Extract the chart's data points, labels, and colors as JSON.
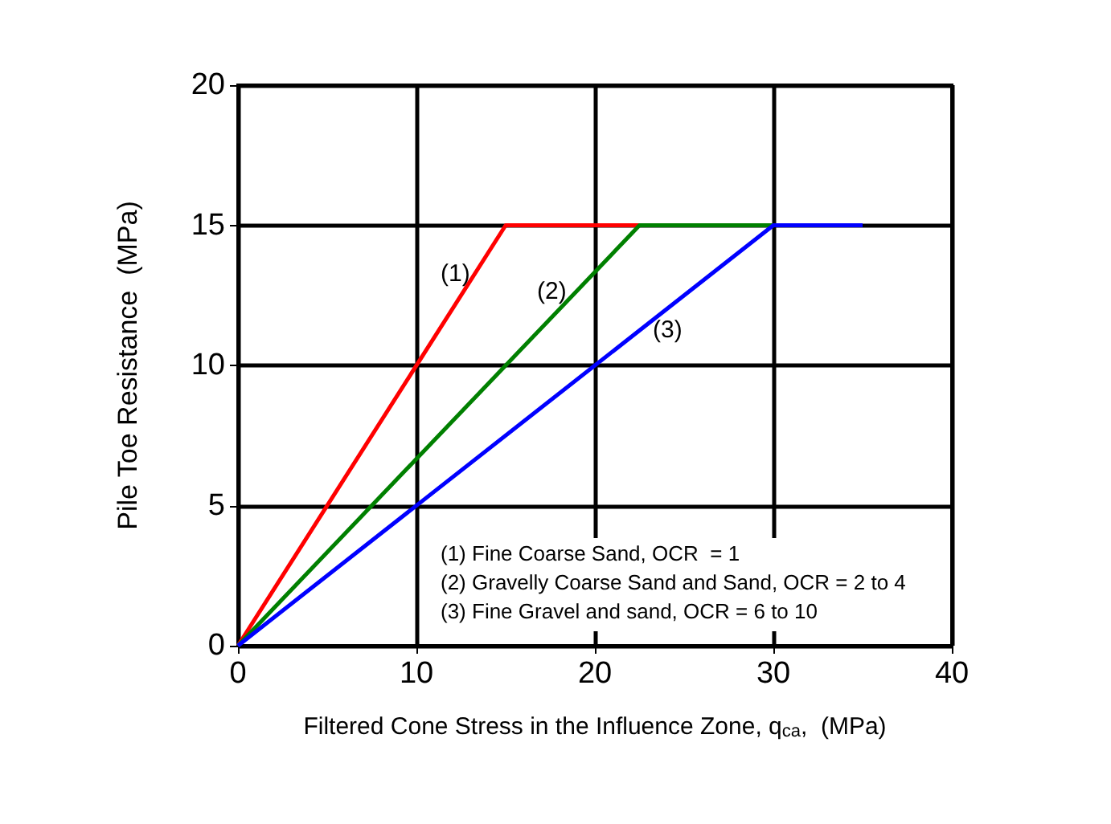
{
  "chart_data": {
    "type": "line",
    "xlabel": "Filtered Cone Stress in the Influence Zone, q$_{ca}$,  (MPa)",
    "ylabel": "Pile Toe Resistance  (MPa)",
    "series": [
      {
        "color": "#ff0000",
        "x": [
          0,
          15,
          22.5
        ],
        "values": [
          0,
          15,
          15
        ]
      },
      {
        "color": "#008000",
        "x": [
          0,
          22.5,
          30
        ],
        "values": [
          0,
          15,
          15
        ]
      },
      {
        "color": "#0000ff",
        "x": [
          0,
          30,
          35
        ],
        "values": [
          0,
          15,
          15
        ]
      }
    ],
    "xlim": [
      0,
      40
    ],
    "xticks": [
      0,
      10,
      20,
      30,
      40
    ],
    "ylim": [
      0,
      20
    ],
    "yticks": [
      0,
      5,
      10,
      15,
      20
    ],
    "grid": true,
    "marker": "none",
    "line_style": "solid",
    "annotations": [
      "(1)",
      "(2)",
      "(3)",
      "(1) Fine Coarse Sand, OCR  = 1",
      "(2) Gravelly Coarse Sand and Sand, OCR = 2 to 4",
      "(3) Fine Gravel and sand, OCR = 6 to 10"
    ]
  }
}
